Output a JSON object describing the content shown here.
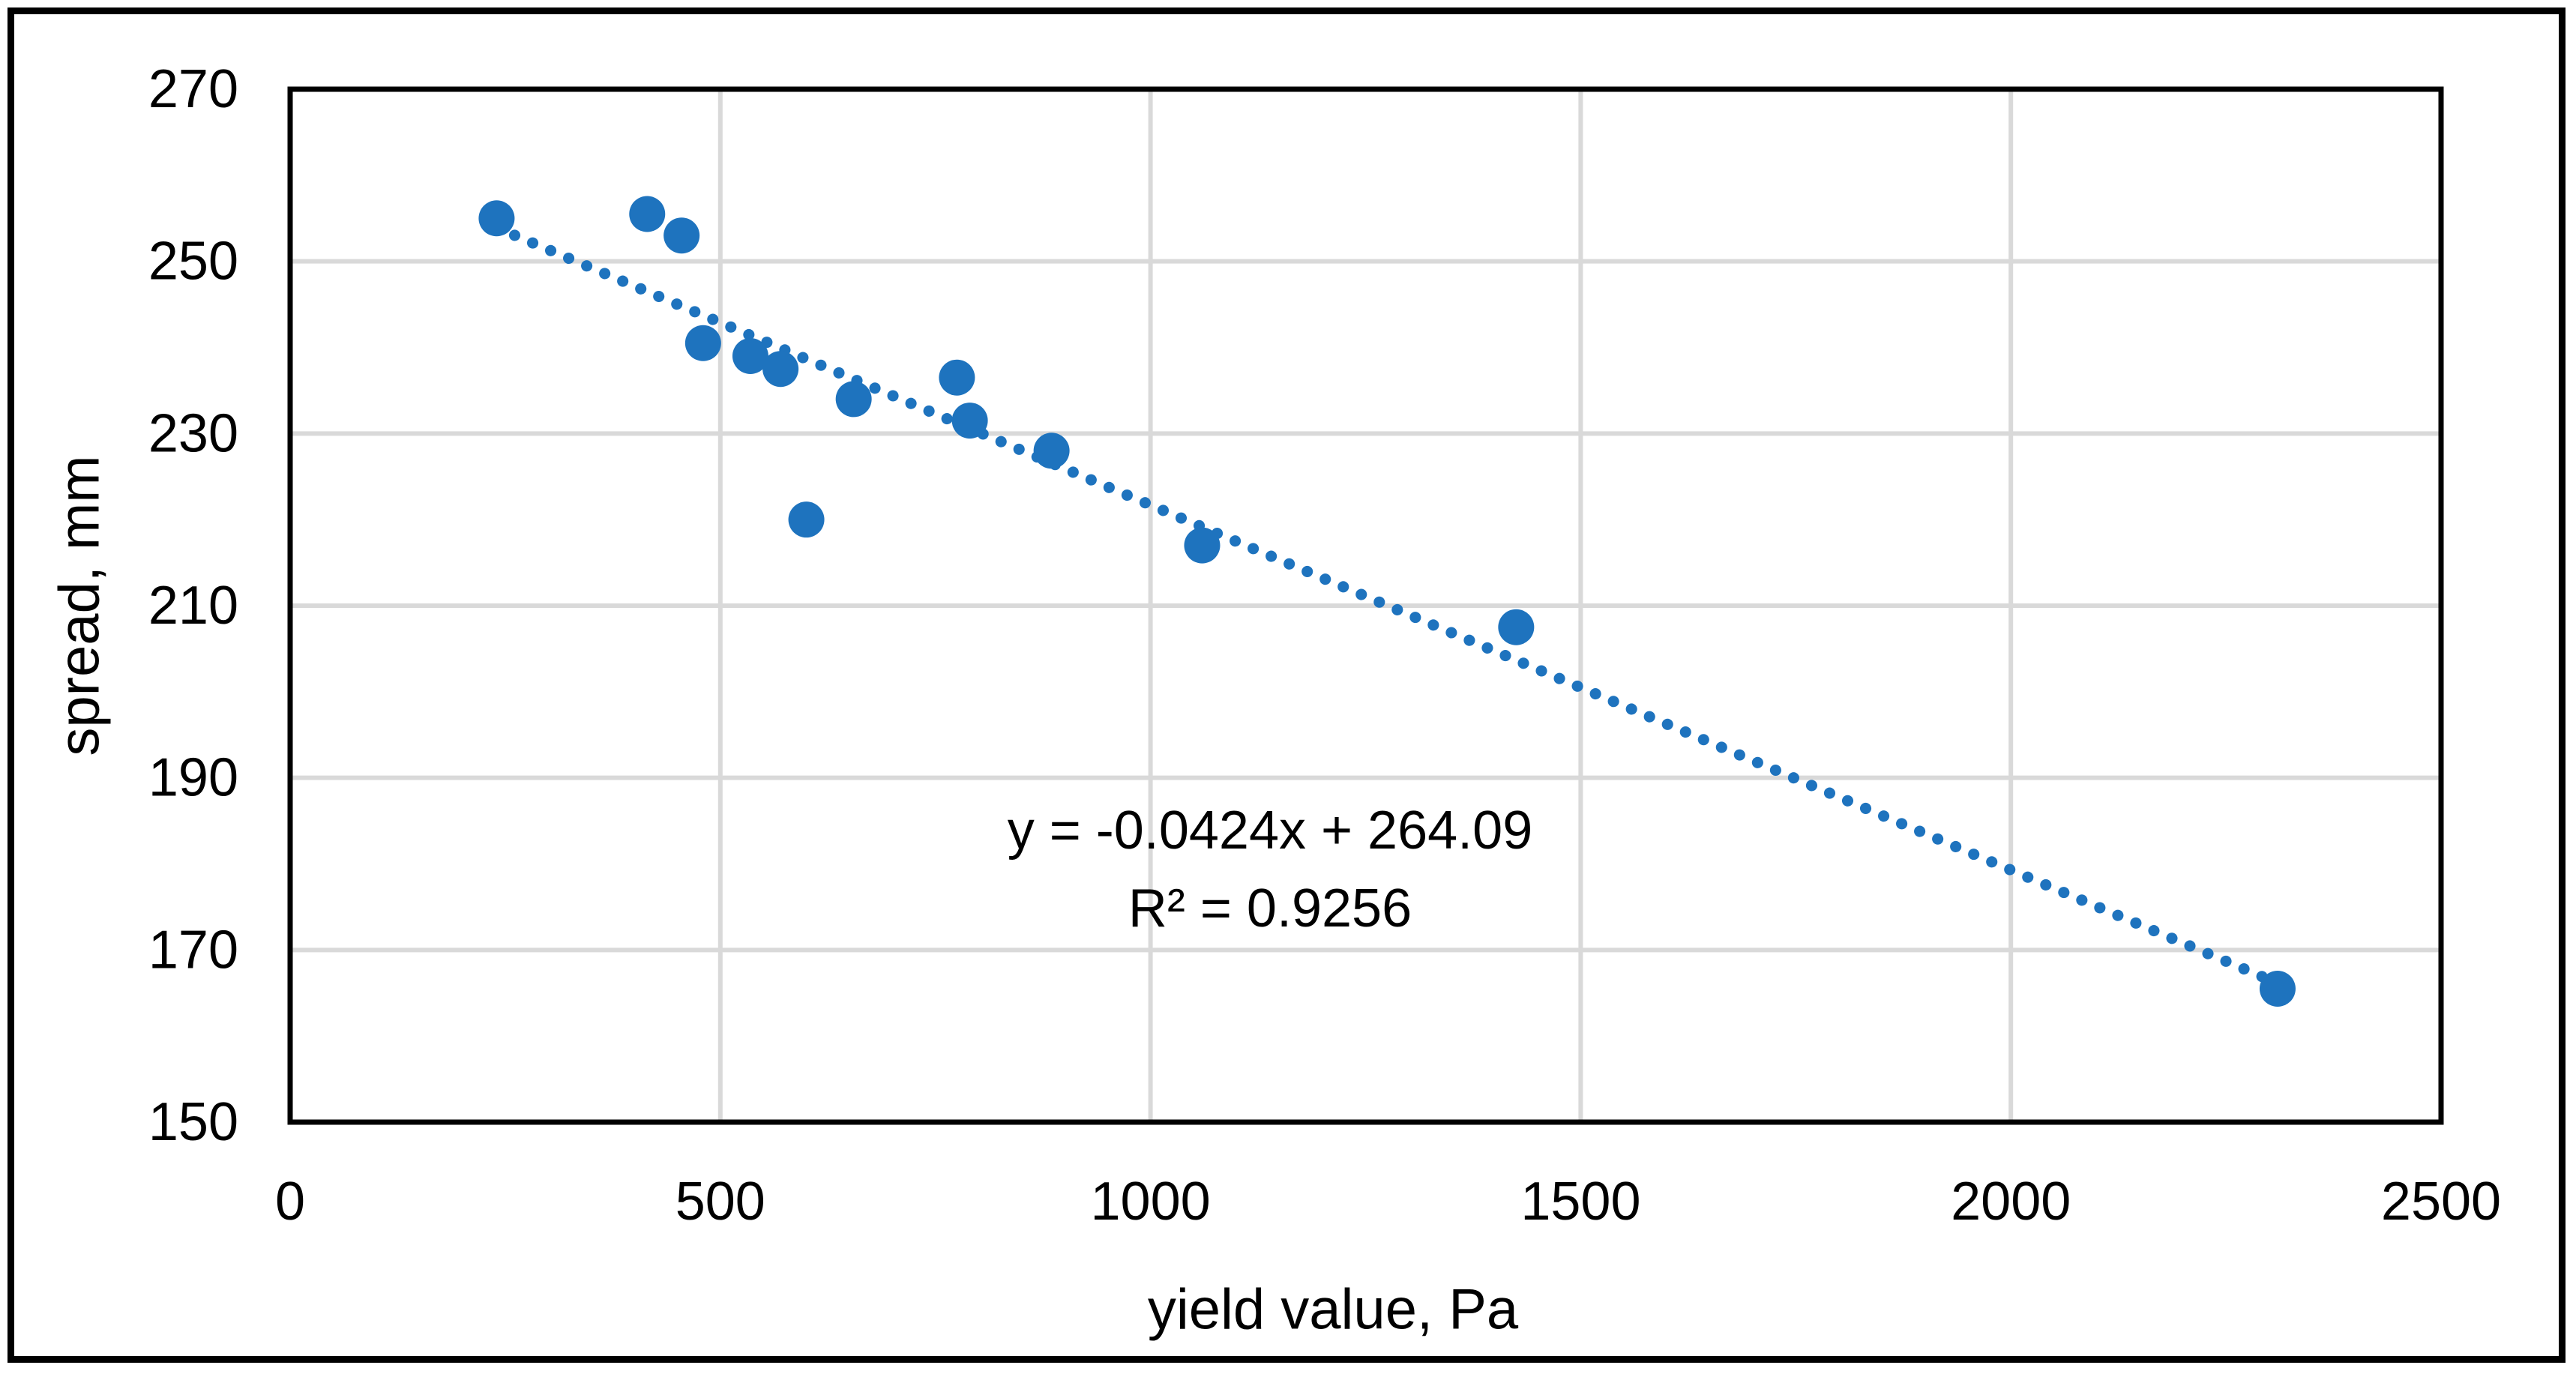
{
  "chart_data": {
    "type": "scatter",
    "title": "",
    "xlabel": "yield value, Pa",
    "ylabel": "spread, mm",
    "xlim": [
      0,
      2500
    ],
    "ylim": [
      150,
      270
    ],
    "x_ticks": [
      0,
      500,
      1000,
      1500,
      2000,
      2500
    ],
    "y_ticks": [
      150,
      170,
      190,
      210,
      230,
      250,
      270
    ],
    "grid": true,
    "legend": false,
    "series": [
      {
        "name": "spread vs yield value",
        "marker": "circle",
        "points": [
          [
            240,
            255
          ],
          [
            415,
            255.5
          ],
          [
            455,
            253
          ],
          [
            480,
            240.5
          ],
          [
            535,
            239
          ],
          [
            570,
            237.5
          ],
          [
            600,
            220
          ],
          [
            655,
            234
          ],
          [
            775,
            236.5
          ],
          [
            790,
            231.5
          ],
          [
            885,
            228
          ],
          [
            1060,
            217
          ],
          [
            1425,
            207.5
          ],
          [
            2310,
            165.5
          ]
        ]
      }
    ],
    "trendline": {
      "type": "linear",
      "slope": -0.0424,
      "intercept": 264.09,
      "r2": 0.9256,
      "x_range": [
        240,
        2310
      ],
      "style": "dotted"
    },
    "annotations": [
      {
        "text": "y = -0.0424x + 264.09"
      },
      {
        "text": "R² = 0.9256"
      }
    ],
    "colors": {
      "marker": "#1E73BE",
      "trendline": "#1E73BE",
      "gridline": "#D9D9D9",
      "axis": "#000000",
      "frame": "#000000",
      "text": "#000000",
      "background": "#FFFFFF"
    }
  }
}
